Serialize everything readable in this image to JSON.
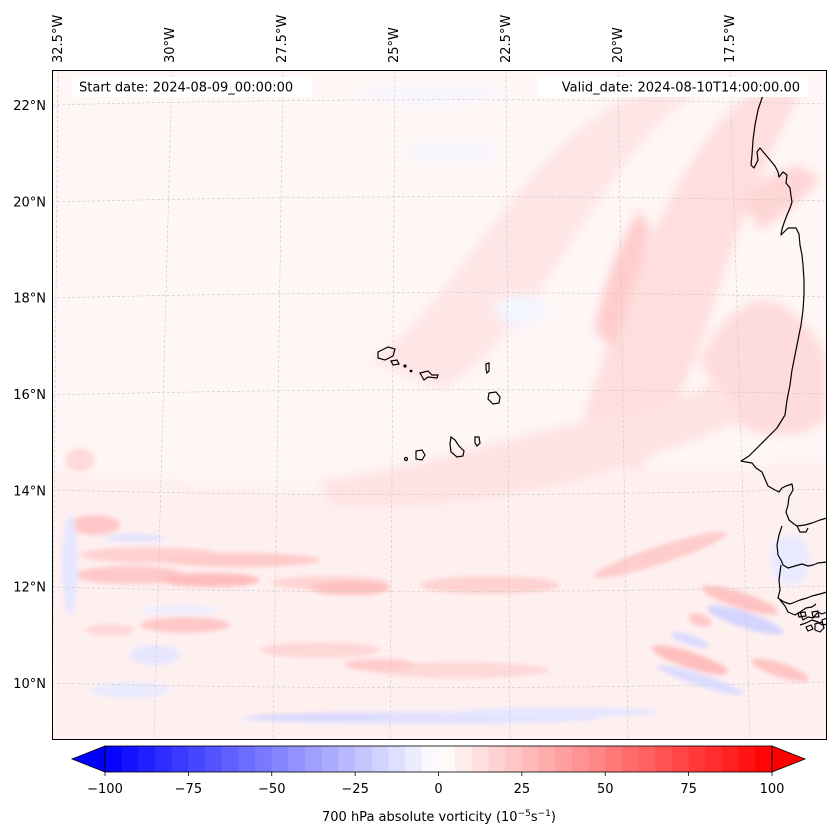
{
  "figure": {
    "start_date_label": "Start date: 2024-08-09_00:00:00",
    "valid_date_label": "Valid_date: 2024-08-10T14:00:00.00"
  },
  "chart_data": {
    "type": "heatmap",
    "title": "",
    "variable": "700 hPa absolute vorticity",
    "units": "10^-5 s^-1",
    "extent": {
      "lon_min": -33.0,
      "lon_max": -15.3,
      "lat_min": 8.9,
      "lat_max": 22.8
    },
    "lon_ticks": [
      {
        "value": -32.5,
        "label": "32.5°W"
      },
      {
        "value": -30.0,
        "label": "30°W"
      },
      {
        "value": -27.5,
        "label": "27.5°W"
      },
      {
        "value": -25.0,
        "label": "25°W"
      },
      {
        "value": -22.5,
        "label": "22.5°W"
      },
      {
        "value": -20.0,
        "label": "20°W"
      },
      {
        "value": -17.5,
        "label": "17.5°W"
      }
    ],
    "lat_ticks": [
      {
        "value": 22,
        "label": "22°N"
      },
      {
        "value": 20,
        "label": "20°N"
      },
      {
        "value": 18,
        "label": "18°N"
      },
      {
        "value": 16,
        "label": "16°N"
      },
      {
        "value": 14,
        "label": "14°N"
      },
      {
        "value": 12,
        "label": "12°N"
      },
      {
        "value": 10,
        "label": "10°N"
      }
    ],
    "gridlines": true,
    "colorbar": {
      "label_main": "700 hPa absolute vorticity (10",
      "label_sup1": "−5",
      "label_mid": "s",
      "label_sup2": "−1",
      "label_end": ")",
      "min": -100,
      "max": 100,
      "step": 5,
      "extend": "both",
      "colormap": "bwr",
      "low_color": "#0000ff",
      "mid_color": "#ffffff",
      "high_color": "#ff0000",
      "ticks": [
        {
          "value": -100,
          "label": "−100"
        },
        {
          "value": -75,
          "label": "−75"
        },
        {
          "value": -50,
          "label": "−50"
        },
        {
          "value": -25,
          "label": "−25"
        },
        {
          "value": 0,
          "label": "0"
        },
        {
          "value": 25,
          "label": "25"
        },
        {
          "value": 50,
          "label": "50"
        },
        {
          "value": 75,
          "label": "75"
        },
        {
          "value": 100,
          "label": "100"
        }
      ],
      "placement": "bottom"
    },
    "features": [
      {
        "name": "positive-vorticity-band-west",
        "description": "zonal red streaks near 12-13°N, 32-27°W",
        "peak_value": 25
      },
      {
        "name": "positive-vorticity-diagonal-streaks",
        "description": "SW-NE oriented red bands 14-22°N, 23-17°W",
        "peak_value": 15
      },
      {
        "name": "negative-vorticity-band-south",
        "description": "blue strip near 9.3°N",
        "peak_value": -15
      },
      {
        "name": "coastal-wave-train",
        "description": "alternating red/blue streaks 10-12.5°N, 21-16°W",
        "peak_value": 25
      }
    ],
    "coastlines": [
      "West Africa coast (Mauritania, Senegal, Gambia, Guinea-Bissau)",
      "Cape Verde Islands"
    ]
  }
}
